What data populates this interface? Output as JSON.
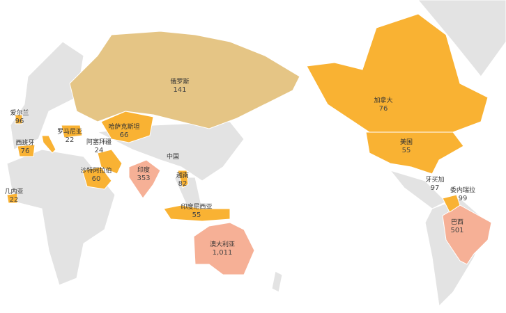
{
  "colors": {
    "land": "#e3e3e3",
    "border": "#ffffff",
    "low": "#f9b233",
    "mid": "#e5c585",
    "high": "#f6b096"
  },
  "unlabeled_region": "中国",
  "regions": [
    {
      "name": "俄罗斯",
      "value": "141",
      "color": "#e5c585"
    },
    {
      "name": "哈萨克斯坦",
      "value": "66",
      "color": "#f9b233"
    },
    {
      "name": "加拿大",
      "value": "76",
      "color": "#f9b233"
    },
    {
      "name": "美国",
      "value": "55",
      "color": "#f9b233"
    },
    {
      "name": "巴西",
      "value": "501",
      "color": "#f6b096"
    },
    {
      "name": "澳大利亚",
      "value": "1,011",
      "color": "#f6b096"
    },
    {
      "name": "印度",
      "value": "353",
      "color": "#f6b096"
    },
    {
      "name": "越南",
      "value": "82",
      "color": "#f9b233"
    },
    {
      "name": "印度尼西亚",
      "value": "55",
      "color": "#f9b233"
    },
    {
      "name": "爱尔兰",
      "value": "96",
      "color": "#f9b233"
    },
    {
      "name": "西班牙",
      "value": "76",
      "color": "#f9b233"
    },
    {
      "name": "罗马尼亚",
      "value": "22",
      "color": "#f9b233"
    },
    {
      "name": "阿塞拜疆",
      "value": "24",
      "color": "#f9b233"
    },
    {
      "name": "沙特阿拉伯",
      "value": "60",
      "color": "#f9b233"
    },
    {
      "name": "几内亚",
      "value": "22",
      "color": "#f9b233"
    },
    {
      "name": "牙买加",
      "value": "97",
      "color": "#f9b233"
    },
    {
      "name": "委内瑞拉",
      "value": "99",
      "color": "#f9b233"
    }
  ]
}
